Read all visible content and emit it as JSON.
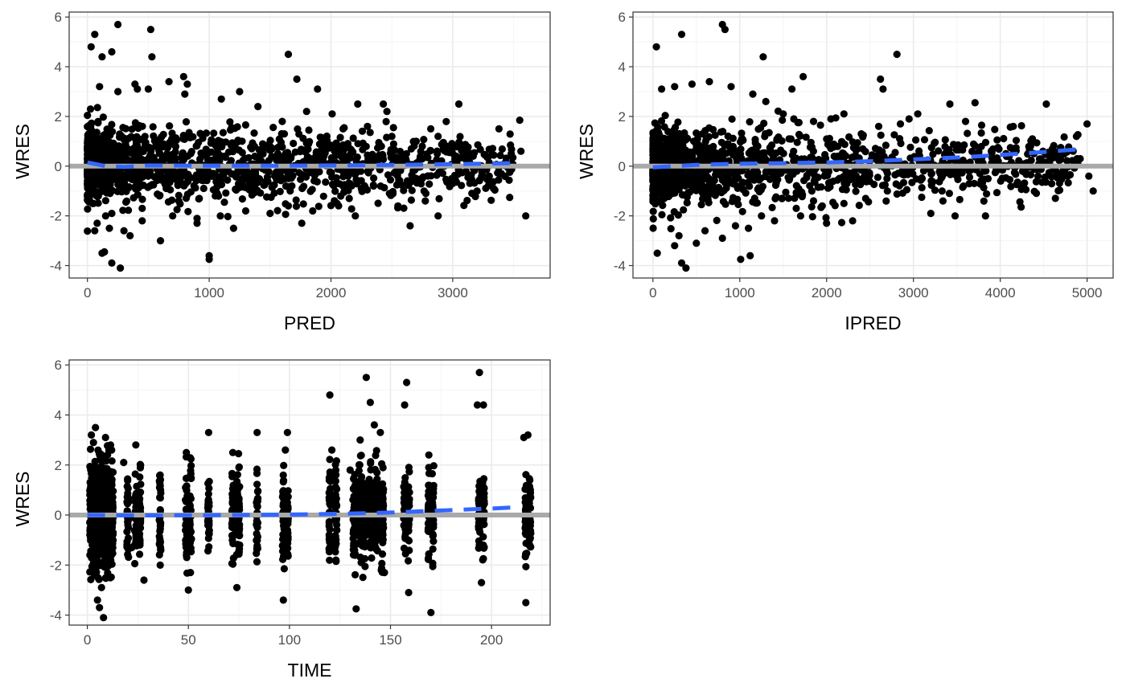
{
  "chart_data": [
    {
      "type": "scatter",
      "xlabel": "PRED",
      "ylabel": "WRES",
      "xlim": [
        -150,
        3800
      ],
      "ylim": [
        -4.5,
        6.2
      ],
      "xticks": [
        0,
        1000,
        2000,
        3000
      ],
      "xtick_labels": [
        "0",
        "1000",
        "2000",
        "3000"
      ],
      "yticks": [
        -4,
        -2,
        0,
        2,
        4,
        6
      ],
      "ytick_labels": [
        "-4",
        "-2",
        "0",
        "2",
        "4",
        "6"
      ],
      "grid": true,
      "reference_line_y": 0,
      "smooth": {
        "x": [
          0,
          150,
          300,
          500,
          1000,
          1500,
          2000,
          2500,
          3000,
          3500
        ],
        "y": [
          0.15,
          0.0,
          -0.03,
          0.03,
          0.02,
          0.02,
          0.03,
          0.05,
          0.08,
          0.12
        ]
      },
      "series": [
        {
          "x": [
            30,
            60,
            120,
            200,
            250,
            520,
            530,
            1650,
            1000,
            1000,
            270,
            3600,
            3550,
            3050,
            1890,
            1720,
            3200,
            3300,
            2880,
            2650,
            1250,
            790,
            120,
            140,
            200,
            390,
            410,
            670,
            820,
            2220,
            2430,
            2460,
            2820,
            2880,
            3380,
            3480,
            3560,
            2620,
            2200,
            1760,
            1500,
            1200,
            900,
            600,
            350,
            180,
            60,
            2010,
            2100,
            2300,
            2500,
            2700,
            2950,
            3100,
            3400,
            1800,
            1600,
            1400,
            1100,
            800,
            500,
            250,
            100,
            2050,
            2150,
            2350,
            2550,
            2750,
            3000,
            1850,
            1650,
            1300,
            900,
            700,
            450,
            300,
            150,
            80,
            1950,
            2250,
            2480,
            2750,
            1350,
            1050,
            750,
            450,
            200,
            50
          ],
          "y": [
            4.8,
            5.3,
            4.4,
            4.6,
            5.7,
            5.5,
            4.4,
            4.5,
            -3.6,
            -3.75,
            -4.1,
            -2.0,
            1.85,
            2.5,
            3.1,
            3.5,
            -1.0,
            -0.4,
            -2.0,
            -2.4,
            3.0,
            3.6,
            -3.5,
            -3.45,
            -3.9,
            3.3,
            3.1,
            3.4,
            3.3,
            2.5,
            2.5,
            2.2,
            1.5,
            1.2,
            1.5,
            0.5,
            0.6,
            0.5,
            -2.0,
            -2.3,
            -1.9,
            -2.5,
            -2.3,
            -3.0,
            -2.8,
            -2.5,
            -2.6,
            2.1,
            1.5,
            1.6,
            1.2,
            1.0,
            0.8,
            0.3,
            -0.3,
            2.2,
            1.8,
            2.4,
            2.7,
            2.9,
            3.1,
            3.0,
            3.2,
            -1.5,
            -1.3,
            -0.8,
            -1.6,
            -0.5,
            -0.7,
            -1.8,
            -1.6,
            -1.8,
            -2.1,
            -2.0,
            -2.2,
            -2.6,
            -2.0,
            -2.3,
            0.6,
            -0.9,
            -1.1,
            0.8,
            0.7,
            -1.2,
            -1.4,
            -1.7,
            -1.9,
            -1.5
          ]
        }
      ]
    },
    {
      "type": "scatter",
      "xlabel": "IPRED",
      "ylabel": "WRES",
      "xlim": [
        -230,
        5300
      ],
      "ylim": [
        -4.5,
        6.2
      ],
      "xticks": [
        0,
        1000,
        2000,
        3000,
        4000,
        5000
      ],
      "xtick_labels": [
        "0",
        "1000",
        "2000",
        "3000",
        "4000",
        "5000"
      ],
      "yticks": [
        -4,
        -2,
        0,
        2,
        4,
        6
      ],
      "ytick_labels": [
        "-4",
        "-2",
        "0",
        "2",
        "4",
        "6"
      ],
      "grid": true,
      "reference_line_y": 0,
      "smooth": {
        "x": [
          0,
          500,
          1000,
          1500,
          2000,
          2500,
          3000,
          3500,
          4000,
          4500,
          4900
        ],
        "y": [
          -0.05,
          0.05,
          0.1,
          0.12,
          0.15,
          0.2,
          0.27,
          0.35,
          0.45,
          0.57,
          0.68
        ]
      },
      "series": [
        {
          "x": [
            40,
            330,
            800,
            830,
            1270,
            1010,
            1120,
            380,
            330,
            4530,
            4150,
            4370,
            4840,
            4920,
            5020,
            5070,
            5000,
            3830,
            3480,
            3200,
            3340,
            2810,
            2620,
            2650,
            1730,
            1600,
            3420,
            3710,
            3600,
            3050,
            2950,
            2850,
            2600,
            2400,
            2200,
            2050,
            1850,
            1500,
            1300,
            1150,
            900,
            650,
            450,
            250,
            100,
            3100,
            3500,
            3700,
            2300,
            2000,
            1700,
            1400,
            1100,
            800,
            500,
            250,
            2200,
            2450,
            2700,
            1950,
            1650,
            1250,
            950,
            600,
            300,
            50
          ],
          "y": [
            4.8,
            5.3,
            5.7,
            5.5,
            4.4,
            -3.75,
            -3.6,
            -4.1,
            -3.9,
            2.5,
            1.6,
            1.1,
            0.6,
            0.3,
            -0.4,
            -1.0,
            1.7,
            -2.0,
            -2.0,
            -1.9,
            -1.4,
            4.5,
            3.5,
            3.1,
            3.6,
            3.1,
            2.5,
            2.55,
            1.8,
            2.1,
            1.9,
            1.7,
            1.6,
            1.3,
            2.1,
            1.9,
            1.8,
            2.1,
            2.6,
            2.9,
            3.2,
            3.4,
            3.3,
            3.2,
            3.1,
            -0.5,
            -0.4,
            -0.7,
            -2.2,
            -2.3,
            -2.0,
            -2.2,
            -2.5,
            -2.9,
            -3.1,
            -3.2,
            -1.5,
            -1.3,
            -1.0,
            -1.6,
            -1.7,
            -2.0,
            -2.4,
            -2.6,
            -2.8,
            -3.5
          ]
        }
      ]
    },
    {
      "type": "scatter",
      "xlabel": "TIME",
      "ylabel": "WRES",
      "xlim": [
        -9,
        229
      ],
      "ylim": [
        -4.4,
        6.2
      ],
      "xticks": [
        0,
        50,
        100,
        150,
        200
      ],
      "xtick_labels": [
        "0",
        "50",
        "100",
        "150",
        "200"
      ],
      "yticks": [
        -4,
        -2,
        0,
        2,
        4,
        6
      ],
      "ytick_labels": [
        "-4",
        "-2",
        "0",
        "2",
        "4",
        "6"
      ],
      "grid": true,
      "reference_line_y": 0,
      "smooth": {
        "x": [
          0,
          25,
          50,
          75,
          100,
          125,
          150,
          175,
          200,
          210
        ],
        "y": [
          0.0,
          -0.02,
          -0.01,
          0.0,
          0.02,
          0.05,
          0.1,
          0.18,
          0.26,
          0.3
        ]
      },
      "series": [
        {
          "x": [
            2,
            3,
            4,
            5,
            6,
            7,
            8,
            9,
            10,
            12,
            18,
            22,
            24,
            28,
            36,
            49,
            50,
            51,
            60,
            72,
            74,
            75,
            84,
            97,
            98,
            99,
            120,
            121,
            123,
            130,
            133,
            135,
            138,
            140,
            142,
            145,
            147,
            157,
            158,
            159,
            169,
            170,
            171,
            193,
            194,
            195,
            196,
            216,
            217,
            218
          ],
          "y": [
            3.2,
            2.9,
            3.5,
            -3.4,
            -3.7,
            -2.9,
            -4.1,
            3.1,
            2.4,
            2.6,
            2.1,
            -1.3,
            2.8,
            -2.6,
            1.6,
            2.5,
            -3.0,
            -2.3,
            3.3,
            2.5,
            -2.9,
            1.9,
            3.3,
            -3.4,
            2.6,
            3.3,
            4.8,
            2.6,
            -1.8,
            1.8,
            -3.75,
            3.0,
            5.5,
            4.5,
            3.6,
            3.3,
            -2.3,
            4.4,
            5.3,
            -3.1,
            2.4,
            -3.9,
            1.0,
            4.4,
            5.7,
            -2.7,
            4.4,
            3.1,
            -3.5,
            3.2
          ]
        }
      ]
    }
  ],
  "style": {
    "point_color": "#000000",
    "smooth_color": "#3366ff",
    "reference_color": "#a9a9a9",
    "grid_major": "#ebebeb",
    "grid_minor": "#f5f5f5",
    "frame_color": "#333333",
    "tick_color": "#333333"
  }
}
